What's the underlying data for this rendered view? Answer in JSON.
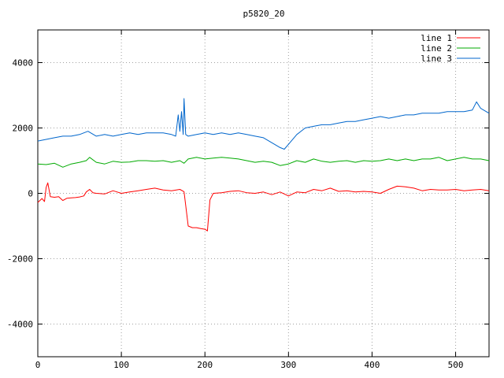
{
  "chart_data": {
    "type": "line",
    "title": "p5820_20",
    "xlabel": "",
    "ylabel": "",
    "xlim": [
      0,
      540
    ],
    "ylim": [
      -5000,
      5000
    ],
    "xticks": [
      0,
      100,
      200,
      300,
      400,
      500
    ],
    "yticks": [
      -4000,
      -2000,
      0,
      2000,
      4000
    ],
    "grid": true,
    "legend_position": "top-right",
    "series": [
      {
        "name": "line 1",
        "color": "#ff0000",
        "x": [
          0,
          5,
          8,
          10,
          12,
          15,
          20,
          25,
          30,
          35,
          40,
          45,
          50,
          55,
          58,
          62,
          66,
          70,
          80,
          90,
          95,
          100,
          110,
          120,
          130,
          140,
          150,
          160,
          170,
          175,
          180,
          185,
          190,
          195,
          200,
          203,
          206,
          210,
          220,
          230,
          240,
          250,
          260,
          270,
          280,
          290,
          300,
          310,
          320,
          330,
          340,
          350,
          360,
          370,
          380,
          390,
          400,
          410,
          420,
          430,
          440,
          450,
          460,
          470,
          480,
          490,
          500,
          510,
          520,
          530,
          540
        ],
        "y": [
          -280,
          -160,
          -250,
          180,
          320,
          -100,
          -120,
          -100,
          -220,
          -150,
          -140,
          -130,
          -110,
          -80,
          40,
          120,
          20,
          0,
          -20,
          80,
          40,
          0,
          40,
          80,
          120,
          160,
          100,
          80,
          120,
          50,
          -1000,
          -1050,
          -1050,
          -1080,
          -1100,
          -1150,
          -200,
          0,
          20,
          60,
          80,
          20,
          0,
          40,
          -40,
          40,
          -80,
          40,
          20,
          120,
          80,
          160,
          60,
          80,
          40,
          60,
          40,
          0,
          120,
          220,
          200,
          160,
          80,
          120,
          100,
          100,
          120,
          80,
          100,
          120,
          80
        ]
      },
      {
        "name": "line 2",
        "color": "#00aa00",
        "x": [
          0,
          10,
          20,
          30,
          40,
          50,
          58,
          62,
          70,
          80,
          90,
          100,
          110,
          120,
          130,
          140,
          150,
          160,
          170,
          175,
          180,
          190,
          200,
          210,
          220,
          230,
          240,
          250,
          260,
          270,
          280,
          290,
          300,
          310,
          320,
          330,
          340,
          350,
          360,
          370,
          380,
          390,
          400,
          410,
          420,
          430,
          440,
          450,
          460,
          470,
          480,
          490,
          500,
          510,
          520,
          530,
          540
        ],
        "y": [
          900,
          880,
          920,
          800,
          900,
          950,
          1000,
          1100,
          950,
          900,
          980,
          950,
          960,
          1000,
          1000,
          980,
          1000,
          950,
          1000,
          920,
          1050,
          1100,
          1050,
          1080,
          1100,
          1080,
          1050,
          1000,
          950,
          980,
          950,
          850,
          900,
          1000,
          950,
          1050,
          980,
          950,
          980,
          1000,
          950,
          1000,
          980,
          1000,
          1050,
          1000,
          1050,
          1000,
          1050,
          1050,
          1100,
          1000,
          1050,
          1100,
          1050,
          1050,
          1000
        ]
      },
      {
        "name": "line 3",
        "color": "#0066cc",
        "x": [
          0,
          10,
          20,
          30,
          40,
          50,
          60,
          70,
          80,
          90,
          100,
          110,
          120,
          130,
          140,
          150,
          160,
          165,
          168,
          170,
          172,
          174,
          175,
          177,
          180,
          190,
          200,
          210,
          220,
          230,
          240,
          250,
          260,
          270,
          280,
          290,
          295,
          300,
          310,
          320,
          330,
          340,
          350,
          360,
          370,
          380,
          390,
          400,
          410,
          420,
          430,
          440,
          450,
          460,
          470,
          480,
          490,
          500,
          510,
          520,
          525,
          530,
          540
        ],
        "y": [
          1600,
          1650,
          1700,
          1750,
          1750,
          1800,
          1900,
          1750,
          1800,
          1750,
          1800,
          1850,
          1800,
          1850,
          1850,
          1850,
          1800,
          1750,
          2400,
          1900,
          2500,
          1800,
          2900,
          1800,
          1750,
          1800,
          1850,
          1800,
          1850,
          1800,
          1850,
          1800,
          1750,
          1700,
          1550,
          1400,
          1350,
          1500,
          1800,
          2000,
          2050,
          2100,
          2100,
          2150,
          2200,
          2200,
          2250,
          2300,
          2350,
          2300,
          2350,
          2400,
          2400,
          2450,
          2450,
          2450,
          2500,
          2500,
          2500,
          2550,
          2800,
          2600,
          2450
        ]
      }
    ]
  }
}
